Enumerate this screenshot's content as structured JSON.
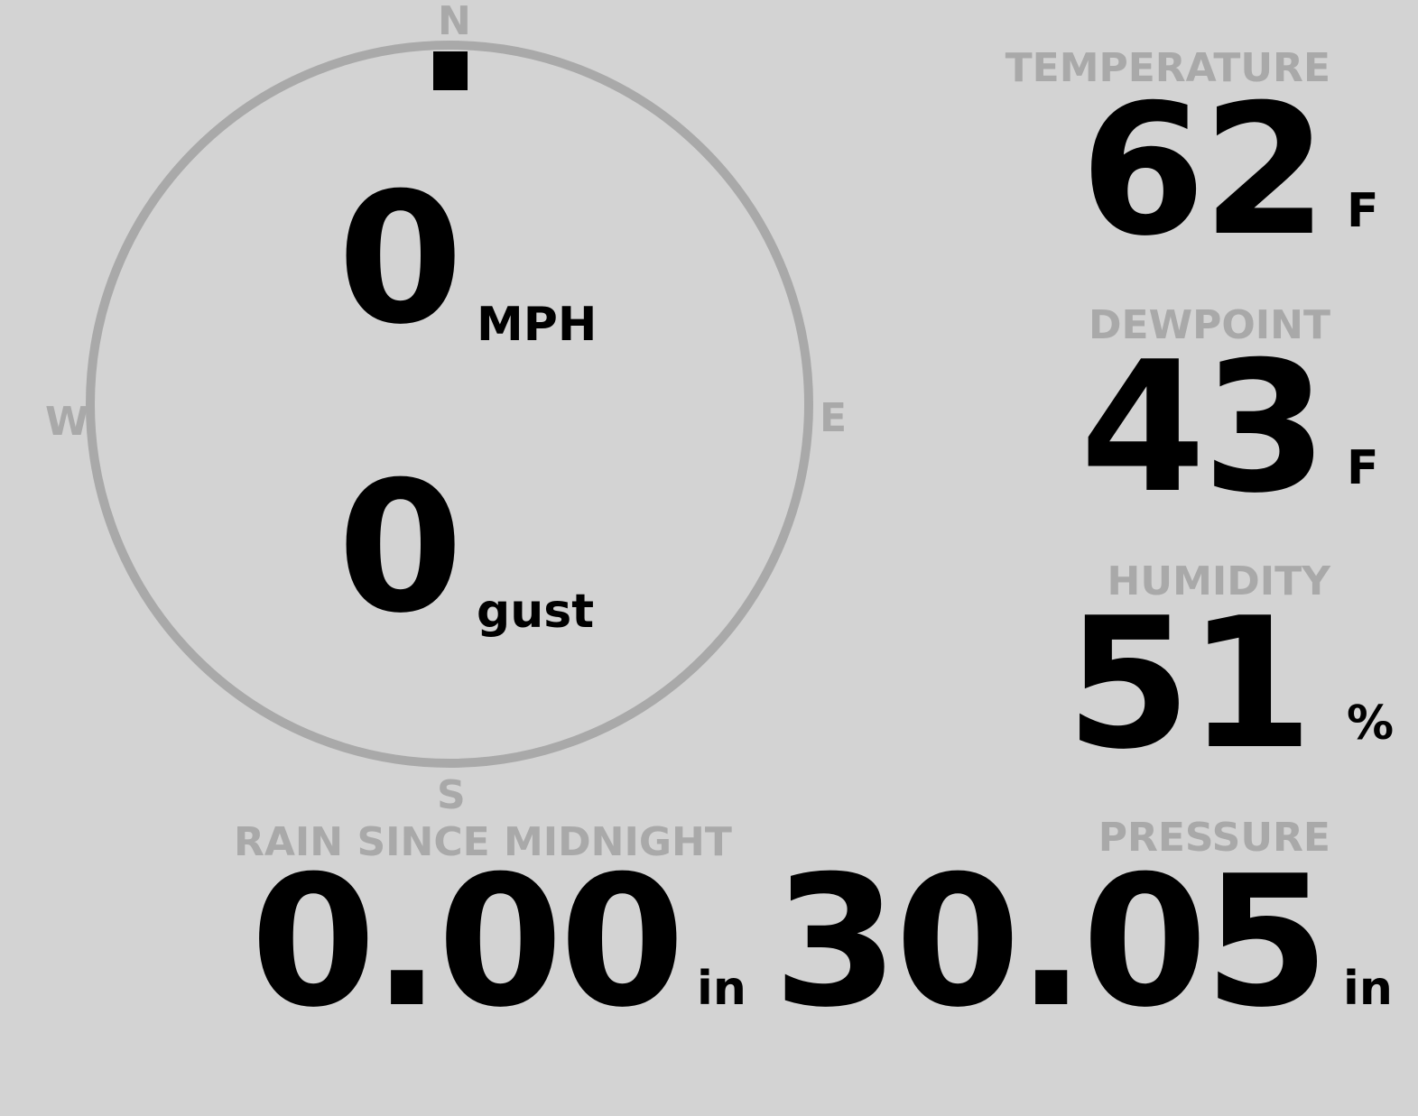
{
  "wind": {
    "speed": "0",
    "speed_unit": "MPH",
    "gust": "0",
    "gust_unit": "gust",
    "direction_degrees": 0,
    "cardinals": {
      "n": "N",
      "e": "E",
      "s": "S",
      "w": "W"
    }
  },
  "temperature": {
    "label": "TEMPERATURE",
    "value": "62",
    "unit": "F"
  },
  "dewpoint": {
    "label": "DEWPOINT",
    "value": "43",
    "unit": "F"
  },
  "humidity": {
    "label": "HUMIDITY",
    "value": "51",
    "unit": "%"
  },
  "rain": {
    "label": "RAIN SINCE MIDNIGHT",
    "value": "0.00",
    "unit": "in"
  },
  "pressure": {
    "label": "PRESSURE",
    "value": "30.05",
    "unit": "in"
  },
  "colors": {
    "background": "#d3d3d3",
    "label": "#a9a9a9",
    "value": "#000000"
  }
}
